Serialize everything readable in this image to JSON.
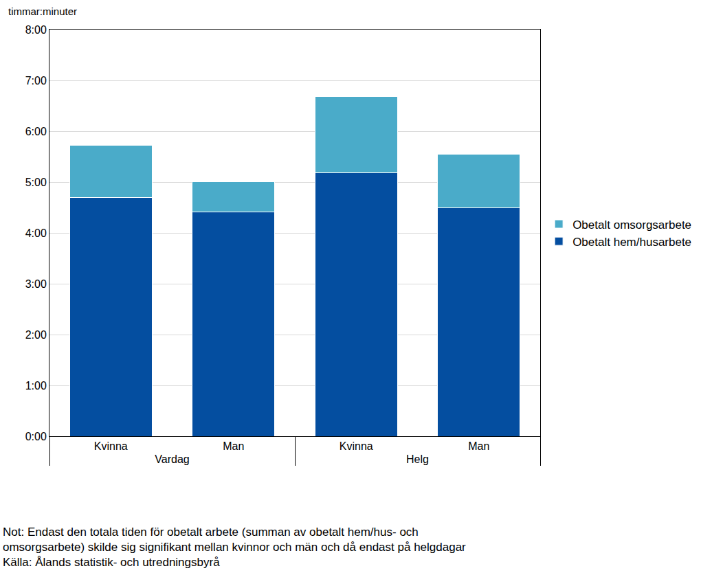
{
  "chart_data": {
    "type": "bar",
    "stacked": true,
    "y_label": "timmar:minuter",
    "categories": [
      "Kvinna",
      "Man",
      "Kvinna",
      "Man"
    ],
    "category_groups": [
      "Vardag",
      "Vardag",
      "Helg",
      "Helg"
    ],
    "series": [
      {
        "name": "Obetalt hem/husarbete",
        "color": "#044ea0",
        "values": [
          4.69,
          4.41,
          5.18,
          4.49
        ]
      },
      {
        "name": "Obetalt omsorgsarbete",
        "color": "#4aabc9",
        "values": [
          1.03,
          0.6,
          1.5,
          1.06
        ]
      }
    ],
    "ylim": [
      0,
      8
    ],
    "yticks": [
      {
        "value": 0,
        "label": "0:00"
      },
      {
        "value": 1,
        "label": "1:00"
      },
      {
        "value": 2,
        "label": "2:00"
      },
      {
        "value": 3,
        "label": "3:00"
      },
      {
        "value": 4,
        "label": "4:00"
      },
      {
        "value": 5,
        "label": "5:00"
      },
      {
        "value": 6,
        "label": "6:00"
      },
      {
        "value": 7,
        "label": "7:00"
      },
      {
        "value": 8,
        "label": "8:00"
      }
    ],
    "grid": true,
    "legend": "right",
    "note": [
      "Not: Endast den totala tiden för obetalt arbete (summan av obetalt hem/hus- och",
      "omsorgsarbete) skilde sig signifikant mellan kvinnor och män och då endast på helgdagar"
    ],
    "source": "Källa: Ålands statistik- och utredningsbyrå"
  }
}
